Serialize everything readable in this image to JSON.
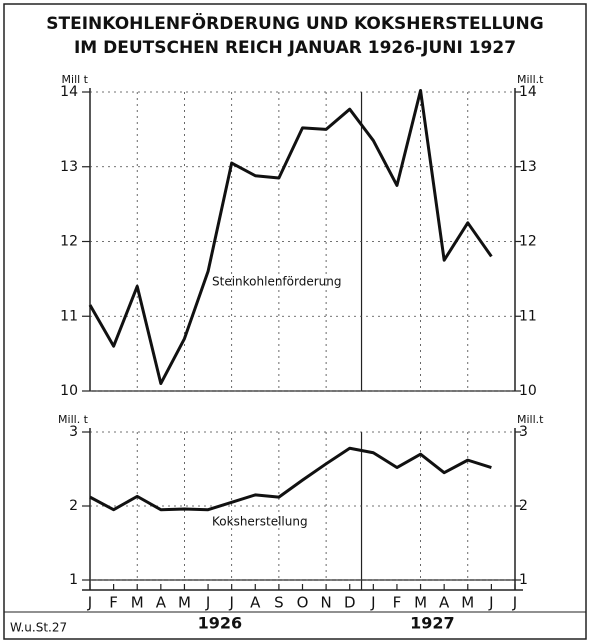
{
  "chart_data": [
    {
      "type": "line",
      "title": [
        "STEINKOHLENFÖRDERUNG UND KOKSHERSTELLUNG",
        "IM DEUTSCHEN REICH JANUAR 1926-JUNI 1927"
      ],
      "y_label": "Mill t",
      "y2_label": "Mill.t",
      "categories": [
        "J",
        "F",
        "M",
        "A",
        "M",
        "J",
        "J",
        "A",
        "S",
        "O",
        "N",
        "D",
        "J",
        "F",
        "M",
        "A",
        "M",
        "J",
        "J"
      ],
      "years": [
        "1926",
        "1927"
      ],
      "series": [
        {
          "name": "Steinkohlenförderung",
          "color": "#111111",
          "values": [
            11.15,
            10.6,
            11.4,
            10.1,
            10.7,
            11.6,
            13.05,
            12.88,
            12.85,
            13.52,
            13.5,
            13.77,
            13.35,
            12.75,
            14.02,
            11.75,
            12.25,
            11.8,
            null
          ]
        }
      ],
      "ylim": [
        10,
        14
      ],
      "yticks": [
        10,
        11,
        12,
        13,
        14
      ],
      "y2lim": [
        10,
        14
      ],
      "y2ticks": [
        10,
        11,
        12,
        13,
        14
      ],
      "grid": true
    },
    {
      "type": "line",
      "y_label": "Mill. t",
      "y2_label": "Mill.t",
      "series": [
        {
          "name": "Koksherstellung",
          "color": "#111111",
          "values": [
            2.12,
            1.95,
            2.13,
            1.95,
            1.96,
            1.95,
            2.05,
            2.15,
            2.12,
            2.35,
            2.57,
            2.78,
            2.72,
            2.52,
            2.7,
            2.45,
            2.62,
            2.52,
            null
          ]
        }
      ],
      "ylim": [
        1,
        3
      ],
      "yticks": [
        1,
        2,
        3
      ],
      "y2lim": [
        1,
        3
      ],
      "y2ticks": [
        1,
        2,
        3
      ],
      "grid": true
    }
  ],
  "source": "W.u.St.27"
}
